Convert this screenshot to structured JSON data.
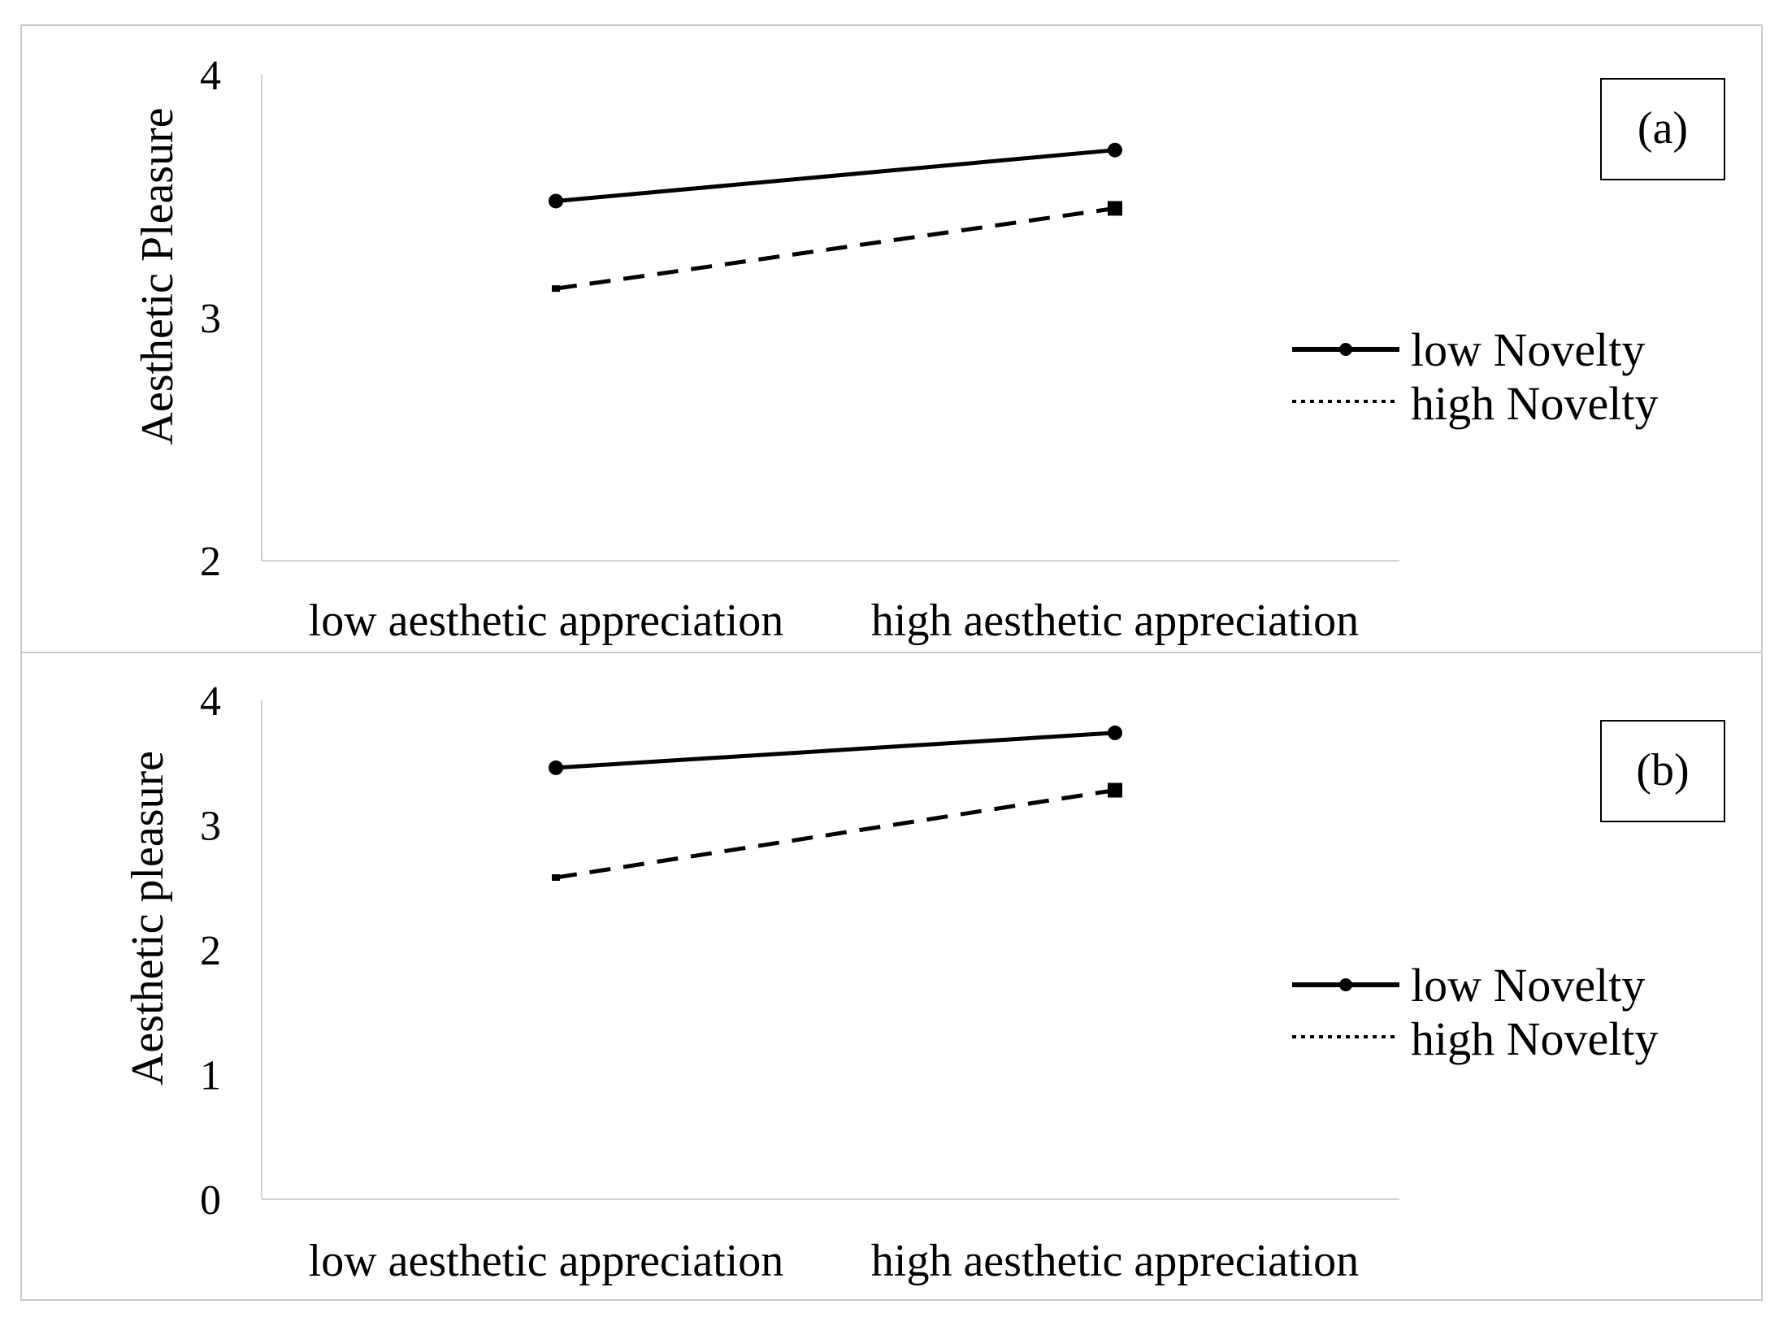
{
  "chart_data": [
    {
      "type": "line",
      "panel_label": "(a)",
      "categories": [
        "low aesthetic appreciation",
        "high aesthetic appreciation"
      ],
      "series": [
        {
          "name": "low Novelty",
          "values": [
            3.48,
            3.69
          ],
          "style": "solid",
          "marker": "circle"
        },
        {
          "name": "high Novelty",
          "values": [
            3.12,
            3.45
          ],
          "style": "dashed",
          "marker": "square"
        }
      ],
      "ylabel": "Aesthetic Pleasure",
      "xlabel": "",
      "ylim": [
        2,
        4
      ],
      "yticks": [
        "2",
        "3",
        "4"
      ],
      "grid": false,
      "legend_position": "right"
    },
    {
      "type": "line",
      "panel_label": "(b)",
      "categories": [
        "low aesthetic appreciation",
        "high aesthetic appreciation"
      ],
      "series": [
        {
          "name": "low Novelty",
          "values": [
            3.46,
            3.74
          ],
          "style": "solid",
          "marker": "circle"
        },
        {
          "name": "high Novelty",
          "values": [
            2.58,
            3.28
          ],
          "style": "dashed",
          "marker": "square"
        }
      ],
      "ylabel": "Aesthetic pleasure",
      "xlabel": "",
      "ylim": [
        0,
        4
      ],
      "yticks": [
        "0",
        "1",
        "2",
        "3",
        "4"
      ],
      "grid": false,
      "legend_position": "right"
    }
  ],
  "colors": {
    "line": "#000000",
    "border": "#c8c8c8",
    "axis": "#d0d0d0"
  }
}
